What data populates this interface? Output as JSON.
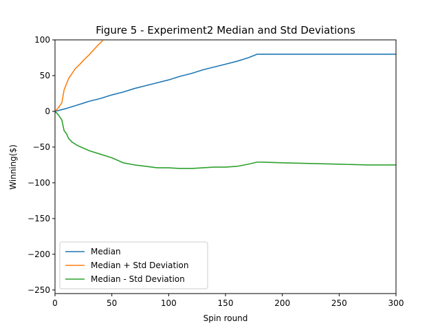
{
  "chart_data": {
    "type": "line",
    "title": "Figure 5 - Experiment2 Median and Std Deviations",
    "xlabel": "Spin round",
    "ylabel": "Winning($)",
    "xlim": [
      0,
      300
    ],
    "ylim": [
      -255,
      100
    ],
    "xticks": [
      0,
      50,
      100,
      150,
      200,
      250,
      300
    ],
    "yticks": [
      -250,
      -200,
      -150,
      -100,
      -50,
      0,
      50,
      100
    ],
    "ytick_labels": [
      "−250",
      "−200",
      "−150",
      "−100",
      "−50",
      "0",
      "50",
      "100"
    ],
    "grid": false,
    "legend_position": "lower-left",
    "series": [
      {
        "name": "Median",
        "color": "#1f77b4",
        "x": [
          0,
          10,
          20,
          30,
          40,
          50,
          60,
          70,
          80,
          90,
          100,
          110,
          120,
          130,
          140,
          150,
          160,
          170,
          178,
          180,
          200,
          250,
          300
        ],
        "y": [
          0,
          4,
          9,
          14,
          18,
          23,
          27,
          32,
          36,
          40,
          44,
          49,
          53,
          58,
          62,
          66,
          70,
          75,
          80,
          80,
          80,
          80,
          80
        ]
      },
      {
        "name": "Median + Std Deviation",
        "color": "#ff7f0e",
        "x": [
          0,
          3,
          6,
          8,
          10,
          12,
          15,
          18,
          22,
          26,
          30,
          34,
          38,
          42
        ],
        "y": [
          0,
          5,
          12,
          30,
          38,
          46,
          53,
          60,
          66,
          73,
          79,
          86,
          93,
          99
        ]
      },
      {
        "name": "Median - Std Deviation",
        "color": "#2ca02c",
        "x": [
          0,
          3,
          6,
          8,
          10,
          12,
          15,
          20,
          30,
          40,
          50,
          60,
          70,
          80,
          90,
          100,
          110,
          120,
          130,
          140,
          150,
          160,
          170,
          178,
          180,
          200,
          250,
          275,
          300
        ],
        "y": [
          0,
          -5,
          -12,
          -27,
          -31,
          -38,
          -43,
          -48,
          -55,
          -60,
          -65,
          -72,
          -75,
          -77,
          -79,
          -79,
          -80,
          -80,
          -79,
          -78,
          -78,
          -77,
          -74,
          -71,
          -71,
          -72,
          -74,
          -75,
          -75
        ]
      }
    ]
  }
}
